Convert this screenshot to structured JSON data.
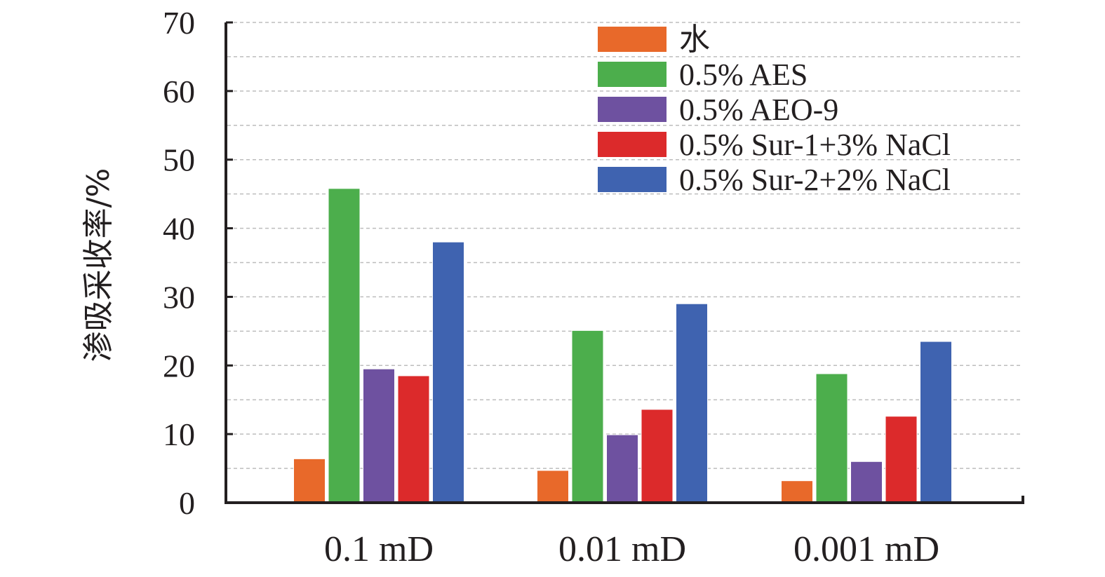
{
  "chart_data": {
    "type": "bar",
    "title": "",
    "xlabel": "",
    "ylabel": "渗吸采收率/%",
    "ylim": [
      0,
      70
    ],
    "yticks": [
      0,
      10,
      20,
      30,
      40,
      50,
      60,
      70
    ],
    "grid": "horizontal dashed",
    "legend_position": "top-right",
    "categories": [
      "0.1 mD",
      "0.01 mD",
      "0.001 mD"
    ],
    "series": [
      {
        "name": "水",
        "color": "#e8692a",
        "values": [
          6.4,
          4.7,
          3.2
        ]
      },
      {
        "name": "0.5% AES",
        "color": "#4cae4c",
        "values": [
          45.8,
          25.1,
          18.8
        ]
      },
      {
        "name": "0.5% AEO-9",
        "color": "#6e51a0",
        "values": [
          19.5,
          9.9,
          6.0
        ]
      },
      {
        "name": "0.5% Sur-1+3% NaCl",
        "color": "#dc2a2b",
        "values": [
          18.5,
          13.6,
          12.6
        ]
      },
      {
        "name": "0.5% Sur-2+2% NaCl",
        "color": "#3f63b0",
        "values": [
          38.0,
          29.0,
          23.5
        ]
      }
    ]
  }
}
